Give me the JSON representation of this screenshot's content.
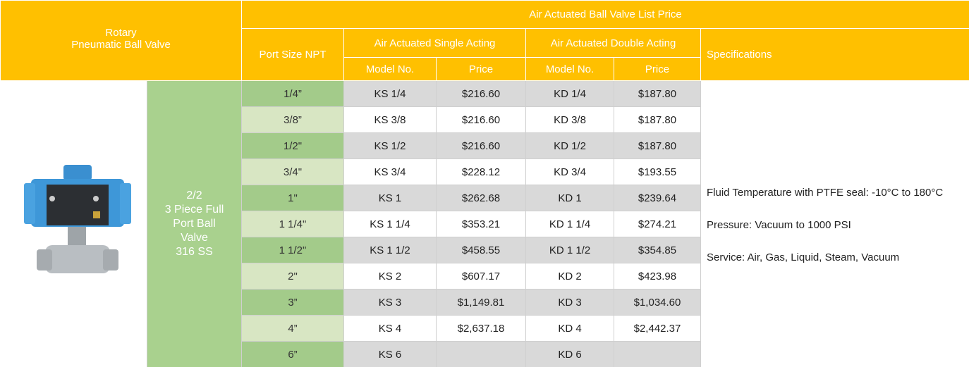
{
  "header": {
    "product": [
      "Rotary",
      "Pneumatic Ball Valve"
    ],
    "title": "Air Actuated Ball Valve List Price",
    "port_size": "Port Size NPT",
    "single_acting": "Air Actuated Single Acting",
    "double_acting": "Air Actuated Double Acting",
    "specifications": "Specifications",
    "sub_headers": [
      "Model No.",
      "Price",
      "Model No.",
      "Price"
    ]
  },
  "description": [
    "2/2",
    "3 Piece Full",
    "Port Ball",
    "Valve",
    "316 SS"
  ],
  "specifications": [
    "Fluid Temperature with PTFE seal:  -10°C to 180°C",
    "Pressure:  Vacuum to 1000 PSI",
    "Service:  Air, Gas, Liquid, Steam, Vacuum"
  ],
  "table": {
    "rows": [
      [
        "1/4”",
        "KS 1/4",
        "$216.60",
        "KD 1/4",
        "$187.80"
      ],
      [
        "3/8”",
        "KS 3/8",
        "$216.60",
        "KD 3/8",
        "$187.80"
      ],
      [
        "1/2\"",
        "KS 1/2",
        "$216.60",
        "KD 1/2",
        "$187.80"
      ],
      [
        "3/4\"",
        "KS 3/4",
        "$228.12",
        "KD 3/4",
        "$193.55"
      ],
      [
        "1\"",
        "KS 1",
        "$262.68",
        "KD 1",
        "$239.64"
      ],
      [
        "1 1/4\"",
        "KS 1 1/4",
        "$353.21",
        "KD 1 1/4",
        "$274.21"
      ],
      [
        "1 1/2\"",
        "KS 1 1/2",
        "$458.55",
        "KD 1 1/2",
        "$354.85"
      ],
      [
        "2\"",
        "KS 2",
        "$607.17",
        "KD 2",
        "$423.98"
      ],
      [
        "3”",
        "KS 3",
        "$1,149.81",
        "KD 3",
        "$1,034.60"
      ],
      [
        "4”",
        "KS 4",
        "$2,637.18",
        "KD 4",
        "$2,442.37"
      ],
      [
        "6”",
        "KS 6",
        null,
        "KD 6",
        null
      ]
    ]
  }
}
